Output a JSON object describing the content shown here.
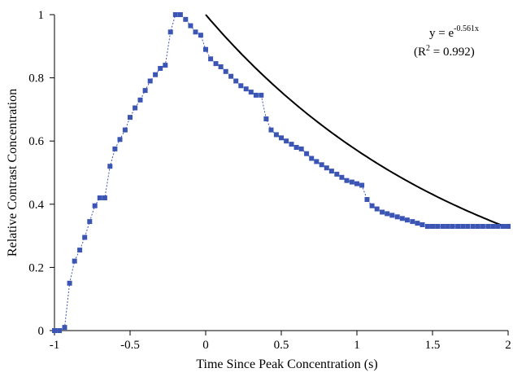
{
  "chart_data": {
    "type": "scatter",
    "title": "",
    "xlabel": "Time Since Peak Concentration (s)",
    "ylabel": "Relative Contrast Concentration",
    "xlim": [
      -1,
      2
    ],
    "ylim": [
      0,
      1
    ],
    "x_ticks": [
      -1,
      -0.5,
      0,
      0.5,
      1,
      1.5,
      2
    ],
    "x_tick_labels": [
      "-1",
      "-0.5",
      "0",
      "0.5",
      "1",
      "1.5",
      "2"
    ],
    "y_ticks": [
      0,
      0.2,
      0.4,
      0.6,
      0.8,
      1
    ],
    "y_tick_labels": [
      "0",
      "0.2",
      "0.4",
      "0.6",
      "0.8",
      "1"
    ],
    "grid": false,
    "legend": "none",
    "series": [
      {
        "marker": "square",
        "line": "dotted",
        "color": "#3b55b5",
        "x": [
          -1.0,
          -0.967,
          -0.933,
          -0.9,
          -0.867,
          -0.833,
          -0.8,
          -0.767,
          -0.733,
          -0.7,
          -0.667,
          -0.633,
          -0.6,
          -0.567,
          -0.533,
          -0.5,
          -0.467,
          -0.433,
          -0.4,
          -0.367,
          -0.333,
          -0.3,
          -0.267,
          -0.233,
          -0.2,
          -0.167,
          -0.133,
          -0.1,
          -0.067,
          -0.033,
          0.0,
          0.033,
          0.067,
          0.1,
          0.133,
          0.167,
          0.2,
          0.233,
          0.267,
          0.3,
          0.333,
          0.367,
          0.4,
          0.433,
          0.467,
          0.5,
          0.533,
          0.567,
          0.6,
          0.633,
          0.667,
          0.7,
          0.733,
          0.767,
          0.8,
          0.833,
          0.867,
          0.9,
          0.933,
          0.967,
          1.0,
          1.033,
          1.067,
          1.1,
          1.133,
          1.167,
          1.2,
          1.233,
          1.267,
          1.3,
          1.333,
          1.367,
          1.4,
          1.433,
          1.467,
          1.5,
          1.533,
          1.567,
          1.6,
          1.633,
          1.667,
          1.7,
          1.733,
          1.767,
          1.8,
          1.833,
          1.867,
          1.9,
          1.933,
          1.967,
          2.0
        ],
        "y": [
          0.0,
          0.0,
          0.01,
          0.15,
          0.22,
          0.255,
          0.295,
          0.345,
          0.395,
          0.42,
          0.42,
          0.52,
          0.575,
          0.605,
          0.635,
          0.675,
          0.705,
          0.73,
          0.76,
          0.79,
          0.81,
          0.83,
          0.84,
          0.945,
          1.0,
          1.0,
          0.985,
          0.965,
          0.945,
          0.935,
          0.89,
          0.86,
          0.845,
          0.835,
          0.82,
          0.805,
          0.79,
          0.775,
          0.765,
          0.755,
          0.745,
          0.745,
          0.67,
          0.635,
          0.62,
          0.61,
          0.6,
          0.59,
          0.58,
          0.575,
          0.56,
          0.545,
          0.535,
          0.525,
          0.515,
          0.505,
          0.495,
          0.485,
          0.475,
          0.47,
          0.465,
          0.46,
          0.415,
          0.395,
          0.385,
          0.375,
          0.37,
          0.365,
          0.36,
          0.355,
          0.35,
          0.345,
          0.34,
          0.335,
          0.33,
          0.33,
          0.33,
          0.33,
          0.33,
          0.33,
          0.33,
          0.33,
          0.33,
          0.33,
          0.33,
          0.33,
          0.33,
          0.33,
          0.33,
          0.33,
          0.33
        ]
      },
      {
        "marker": "none",
        "line": "solid",
        "color": "#000000",
        "fit": {
          "a": -0.561,
          "x_start": 0,
          "x_end": 2
        }
      }
    ],
    "annotation": {
      "equation_base": "y = e",
      "equation_exponent": "-0.561x",
      "r2_open": "(R",
      "r2_sup": "2",
      "r2_close": " = 0.992)"
    }
  }
}
